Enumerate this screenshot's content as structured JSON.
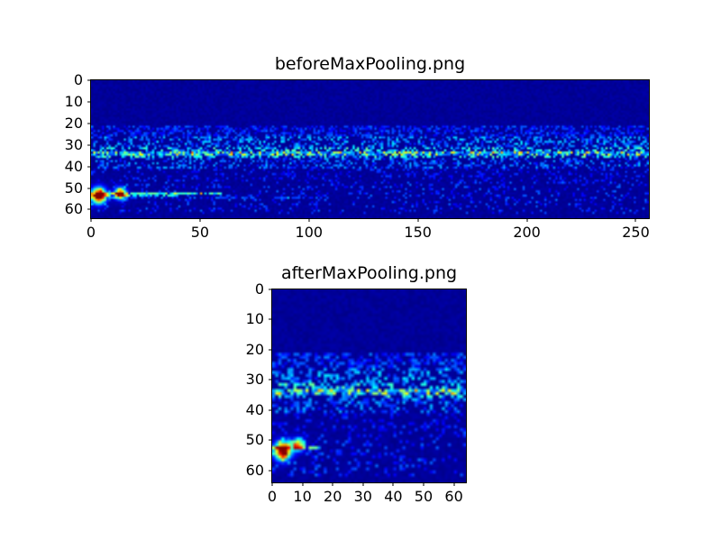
{
  "figure": {
    "background": "#ffffff",
    "plot_background": "#000090",
    "text_color": "#000000"
  },
  "chart_data": [
    {
      "type": "heatmap",
      "title": "beforeMaxPooling.png",
      "colormap": "jet",
      "grid": [
        256,
        64
      ],
      "x_range": [
        0,
        256
      ],
      "y_range": [
        0,
        64
      ],
      "x_ticks": [
        0,
        50,
        100,
        150,
        200,
        250
      ],
      "y_ticks": [
        0,
        10,
        20,
        30,
        40,
        50,
        60
      ],
      "legend": "none",
      "background_level": 0.01,
      "noise_jitter": 0.03,
      "seed": 7,
      "bands": [
        {
          "y": [
            21,
            26
          ],
          "density": 0.45,
          "intensity": 0.2
        },
        {
          "y": [
            26,
            31
          ],
          "density": 0.4,
          "intensity": 0.32
        },
        {
          "y": [
            31,
            36
          ],
          "density": 0.45,
          "intensity": 0.45
        },
        {
          "y": [
            36,
            41
          ],
          "density": 0.35,
          "intensity": 0.28
        },
        {
          "y": [
            41,
            47
          ],
          "density": 0.2,
          "intensity": 0.16
        },
        {
          "y": [
            47,
            62
          ],
          "density": 0.15,
          "intensity": 0.2
        }
      ],
      "streaks": [
        {
          "y": 33,
          "x": [
            0,
            256
          ],
          "density": 0.85,
          "intensity": 0.3
        },
        {
          "y": 34,
          "x": [
            0,
            256
          ],
          "density": 0.7,
          "intensity": 0.25
        },
        {
          "y": 52,
          "x": [
            0,
            60
          ],
          "density": 0.85,
          "intensity": 0.5
        },
        {
          "y": 53,
          "x": [
            0,
            40
          ],
          "density": 0.8,
          "intensity": 0.4
        },
        {
          "y": 54,
          "x": [
            0,
            110
          ],
          "density": 0.5,
          "intensity": 0.22
        }
      ],
      "blobs": [
        {
          "x": 3,
          "y": 53,
          "sx": 2.2,
          "sy": 2.4,
          "peak": 1.1
        },
        {
          "x": 13,
          "y": 52,
          "sx": 1.8,
          "sy": 1.8,
          "peak": 0.85
        }
      ]
    },
    {
      "type": "heatmap",
      "title": "afterMaxPooling.png",
      "colormap": "jet",
      "grid": [
        64,
        64
      ],
      "x_range": [
        0,
        64
      ],
      "y_range": [
        0,
        64
      ],
      "x_ticks": [
        0,
        10,
        20,
        30,
        40,
        50,
        60
      ],
      "y_ticks": [
        0,
        10,
        20,
        30,
        40,
        50,
        60
      ],
      "legend": "none",
      "background_level": 0.01,
      "noise_jitter": 0.03,
      "seed": 11,
      "bands": [
        {
          "y": [
            21,
            26
          ],
          "density": 0.5,
          "intensity": 0.22
        },
        {
          "y": [
            26,
            31
          ],
          "density": 0.45,
          "intensity": 0.34
        },
        {
          "y": [
            31,
            36
          ],
          "density": 0.5,
          "intensity": 0.46
        },
        {
          "y": [
            36,
            41
          ],
          "density": 0.4,
          "intensity": 0.28
        },
        {
          "y": [
            41,
            47
          ],
          "density": 0.2,
          "intensity": 0.16
        },
        {
          "y": [
            47,
            62
          ],
          "density": 0.18,
          "intensity": 0.2
        }
      ],
      "streaks": [
        {
          "y": 33,
          "x": [
            0,
            64
          ],
          "density": 0.85,
          "intensity": 0.32
        },
        {
          "y": 34,
          "x": [
            0,
            64
          ],
          "density": 0.7,
          "intensity": 0.26
        },
        {
          "y": 52,
          "x": [
            0,
            16
          ],
          "density": 0.85,
          "intensity": 0.5
        }
      ],
      "blobs": [
        {
          "x": 3,
          "y": 53,
          "sx": 1.8,
          "sy": 2.0,
          "peak": 1.1
        },
        {
          "x": 8,
          "y": 51,
          "sx": 1.4,
          "sy": 1.4,
          "peak": 0.7
        }
      ]
    }
  ]
}
